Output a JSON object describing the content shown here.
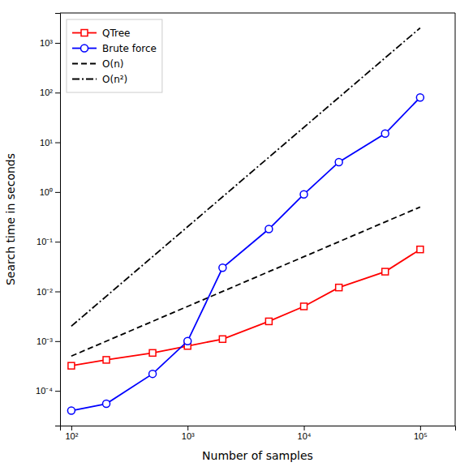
{
  "chart_data": {
    "type": "line",
    "xlabel": "Number of samples",
    "ylabel": "Search time in seconds",
    "log": true,
    "grid": false,
    "legend": "upper left",
    "xlim": [
      80,
      200000
    ],
    "ylim": [
      2e-05,
      4000
    ],
    "xticks": [
      {
        "value": 100,
        "label": "10²"
      },
      {
        "value": 1000,
        "label": "10³"
      },
      {
        "value": 10000,
        "label": "10⁴"
      },
      {
        "value": 100000,
        "label": "10⁵"
      }
    ],
    "yticks": [
      {
        "value": 0.0001,
        "label": "10⁻⁴"
      },
      {
        "value": 0.001,
        "label": "10⁻³"
      },
      {
        "value": 0.01,
        "label": "10⁻²"
      },
      {
        "value": 0.1,
        "label": "10⁻¹"
      },
      {
        "value": 1,
        "label": "10⁰"
      },
      {
        "value": 10,
        "label": "10¹"
      },
      {
        "value": 100,
        "label": "10²"
      },
      {
        "value": 1000,
        "label": "10³"
      }
    ],
    "series": [
      {
        "name": "QTree",
        "color": "red",
        "marker": "square",
        "line_style": "solid",
        "x": [
          100,
          200,
          500,
          1000,
          2000,
          5000,
          10000,
          20000,
          50000,
          100000
        ],
        "values": [
          0.00032,
          0.00042,
          0.00058,
          0.0008,
          0.0011,
          0.0025,
          0.005,
          0.012,
          0.025,
          0.07
        ]
      },
      {
        "name": "Brute force",
        "color": "blue",
        "marker": "circle",
        "line_style": "solid",
        "x": [
          100,
          200,
          500,
          1000,
          2000,
          5000,
          10000,
          20000,
          50000,
          100000
        ],
        "values": [
          4e-05,
          5.5e-05,
          0.00022,
          0.001,
          0.03,
          0.18,
          0.9,
          4.0,
          15.0,
          80.0
        ]
      },
      {
        "name": "O(n)",
        "color": "black",
        "marker": "none",
        "line_style": "dashed",
        "x": [
          100,
          100000
        ],
        "values": [
          0.0005,
          0.5
        ]
      },
      {
        "name": "O(n²)",
        "color": "black",
        "marker": "none",
        "line_style": "dashdot",
        "x": [
          100,
          100000
        ],
        "values": [
          0.002,
          2000.0
        ]
      }
    ]
  }
}
